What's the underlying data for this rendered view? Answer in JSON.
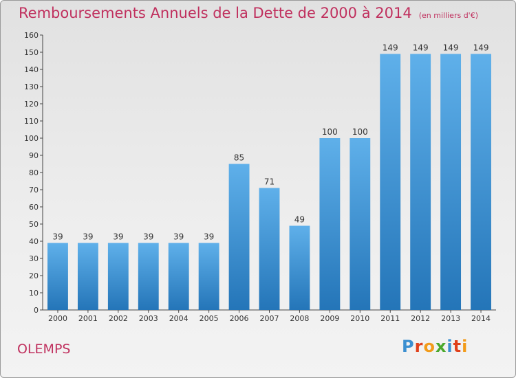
{
  "chart_data": {
    "type": "bar",
    "title": "Remboursements Annuels de la Dette de 2000 à 2014",
    "subtitle": "(en milliers d'€)",
    "categories": [
      "2000",
      "2001",
      "2002",
      "2003",
      "2004",
      "2005",
      "2006",
      "2007",
      "2008",
      "2009",
      "2010",
      "2011",
      "2012",
      "2013",
      "2014"
    ],
    "values": [
      39,
      39,
      39,
      39,
      39,
      39,
      85,
      71,
      49,
      100,
      100,
      149,
      149,
      149,
      149
    ],
    "ylim": [
      0,
      160
    ],
    "yticks": [
      0,
      10,
      20,
      30,
      40,
      50,
      60,
      70,
      80,
      90,
      100,
      110,
      120,
      130,
      140,
      150,
      160
    ],
    "xlabel": "",
    "ylabel": "",
    "grid": false,
    "bar_color": "#3a8fd6"
  },
  "footer": {
    "place": "OLEMPS",
    "logo": "Proxiti",
    "logo_colors": [
      "#3b8fd0",
      "#e0401b",
      "#f29b1a",
      "#4aa82c",
      "#3b8fd0",
      "#e0401b",
      "#f29b1a"
    ]
  },
  "colors": {
    "title": "#c0305e"
  }
}
